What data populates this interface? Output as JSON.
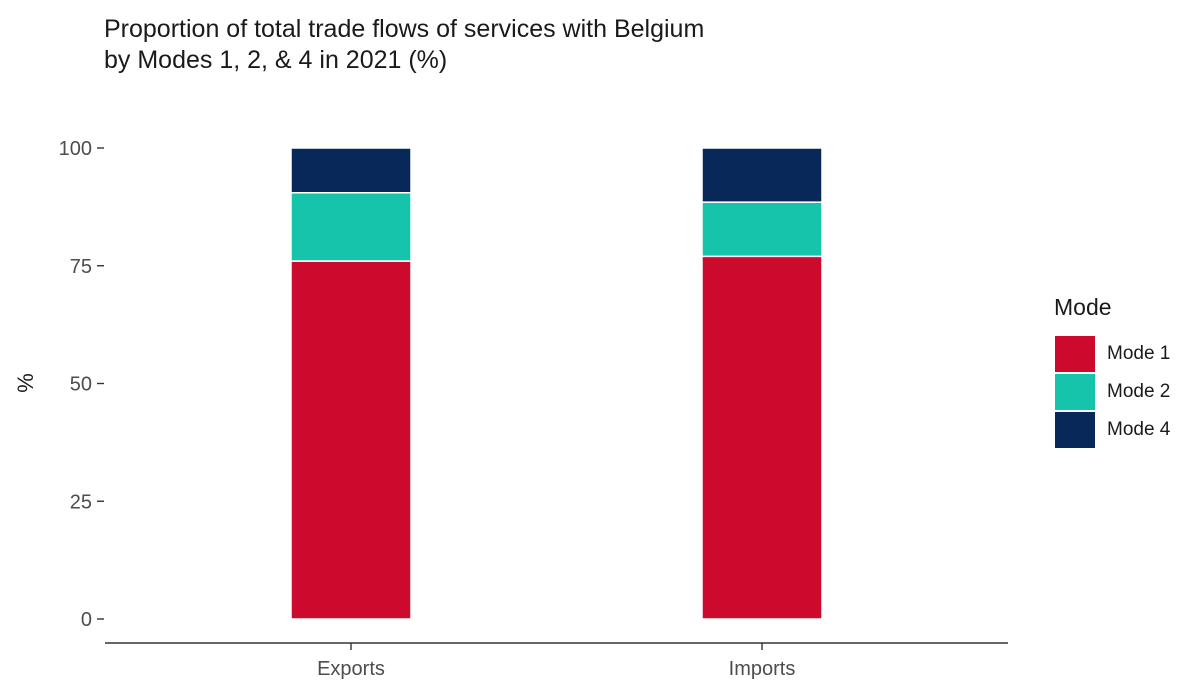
{
  "chart_data": {
    "type": "bar",
    "stacked": true,
    "title": "Proportion of total trade flows of services with Belgium",
    "subtitle": "by Modes 1, 2, & 4 in 2021 (%)",
    "xlabel": "",
    "ylabel": "%",
    "categories": [
      "Exports",
      "Imports"
    ],
    "ylim": [
      0,
      100
    ],
    "yticks": [
      0,
      25,
      50,
      75,
      100
    ],
    "series": [
      {
        "name": "Mode 1",
        "values": [
          76,
          77
        ],
        "color": "#cc0a2d"
      },
      {
        "name": "Mode 2",
        "values": [
          14.5,
          11.5
        ],
        "color": "#16c4ab"
      },
      {
        "name": "Mode 4",
        "values": [
          9.5,
          11.5
        ],
        "color": "#08285a"
      }
    ],
    "legend": {
      "title": "Mode",
      "position": "right"
    },
    "grid": false
  }
}
